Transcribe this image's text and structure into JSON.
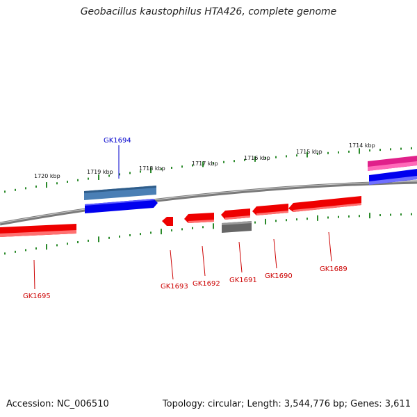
{
  "header": {
    "title": "Geobacillus kaustophilus HTA426, complete genome"
  },
  "footer": {
    "accession": "Accession: NC_006510",
    "info": "Topology: circular; Length: 3,544,776 bp; Genes: 3,611"
  },
  "ruler_labels": [
    "1720 kbp",
    "1719 kbp",
    "1718 kbp",
    "1717 kbp",
    "1716 kbp",
    "1715 kbp",
    "1714 kbp"
  ],
  "colors": {
    "backbone": "#7a7a7a",
    "tick": "#2a8a2a",
    "gene_red": "#ee0000",
    "gene_blue": "#0000ee",
    "gene_steelblue": "#4a7fb5",
    "gene_gray": "#666666",
    "gene_magenta": "#e0208a",
    "label_red": "#cc0000",
    "label_blue": "#0000cc"
  },
  "genes": [
    {
      "id": "GK1694",
      "strand": "+",
      "color": "steelblue",
      "label_color": "blue"
    },
    {
      "id": "GK1695",
      "strand": "-",
      "color": "red",
      "label_color": "red"
    },
    {
      "id": "GK1693",
      "strand": "-",
      "color": "red",
      "label_color": "red"
    },
    {
      "id": "GK1692",
      "strand": "-",
      "color": "red",
      "label_color": "red"
    },
    {
      "id": "GK1691",
      "strand": "-",
      "color": "red",
      "label_color": "red"
    },
    {
      "id": "GK1690",
      "strand": "-",
      "color": "red",
      "label_color": "red"
    },
    {
      "id": "GK1689",
      "strand": "-",
      "color": "red",
      "label_color": "red"
    }
  ]
}
